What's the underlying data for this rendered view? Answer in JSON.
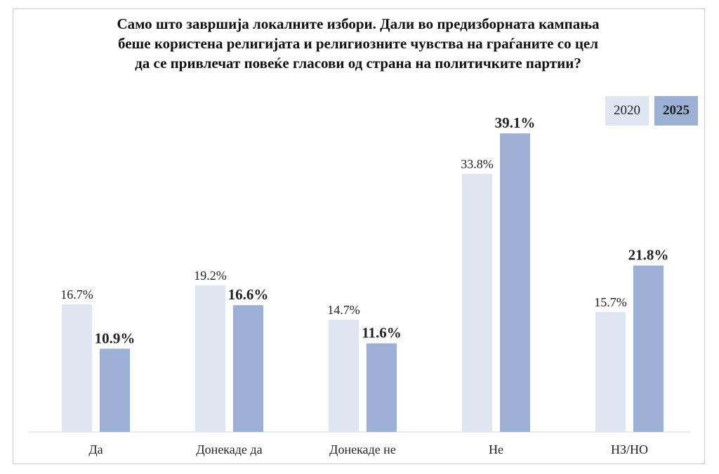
{
  "chart_data": {
    "type": "bar",
    "title_lines": [
      "Само што завршија локалните избори. Дали во предизборната кампања",
      "беше користена религијата и религиозните чувства на граѓаните со цел",
      "да се привлечат повеќе гласови од страна на политичките партии?"
    ],
    "categories": [
      "Да",
      "Донекаде да",
      "Донекаде не",
      "Не",
      "НЗ/НО"
    ],
    "series": [
      {
        "name": "2020",
        "values": [
          16.7,
          19.2,
          14.7,
          33.8,
          15.7
        ],
        "labels": [
          "16.7%",
          "19.2%",
          "14.7%",
          "33.8%",
          "15.7%"
        ],
        "color": "#dfe6f1",
        "bold": false
      },
      {
        "name": "2025",
        "values": [
          10.9,
          16.6,
          11.6,
          39.1,
          21.8
        ],
        "labels": [
          "10.9%",
          "16.6%",
          "11.6%",
          "39.1%",
          "21.8%"
        ],
        "color": "#9bb0d4",
        "bold": true
      }
    ],
    "ylim": [
      0,
      45
    ],
    "legend_position": "top-right",
    "grid": false
  }
}
